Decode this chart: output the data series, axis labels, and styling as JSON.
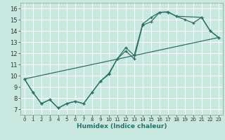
{
  "xlabel": "Humidex (Indice chaleur)",
  "xlim": [
    -0.5,
    23.5
  ],
  "ylim": [
    6.5,
    16.5
  ],
  "yticks": [
    7,
    8,
    9,
    10,
    11,
    12,
    13,
    14,
    15,
    16
  ],
  "xticks": [
    0,
    1,
    2,
    3,
    4,
    5,
    6,
    7,
    8,
    9,
    10,
    11,
    12,
    13,
    14,
    15,
    16,
    17,
    18,
    19,
    20,
    21,
    22,
    23
  ],
  "bg_color": "#c8e8e0",
  "line_color": "#2a7068",
  "grid_color": "#ffffff",
  "line1_x": [
    0,
    1,
    2,
    3,
    4,
    5,
    6,
    7,
    8,
    9,
    10,
    11,
    12,
    13,
    14,
    15,
    16,
    17,
    18,
    19,
    20,
    21,
    22,
    23
  ],
  "line1_y": [
    9.7,
    8.5,
    7.5,
    7.85,
    7.1,
    7.5,
    7.7,
    7.5,
    8.5,
    9.5,
    10.1,
    11.5,
    12.2,
    11.5,
    14.5,
    14.8,
    15.65,
    15.7,
    15.3,
    15.0,
    14.7,
    15.2,
    14.0,
    13.4
  ],
  "line2_x": [
    0,
    1,
    2,
    3,
    4,
    5,
    6,
    7,
    8,
    9,
    10,
    11,
    12,
    13,
    14,
    15,
    16,
    17,
    18,
    21,
    22,
    23
  ],
  "line2_y": [
    9.7,
    8.5,
    7.5,
    7.85,
    7.1,
    7.5,
    7.7,
    7.5,
    8.5,
    9.5,
    10.2,
    11.5,
    12.5,
    11.8,
    14.6,
    15.2,
    15.65,
    15.65,
    15.3,
    15.2,
    14.0,
    13.4
  ],
  "line3_x": [
    0,
    23
  ],
  "line3_y": [
    9.7,
    13.4
  ]
}
